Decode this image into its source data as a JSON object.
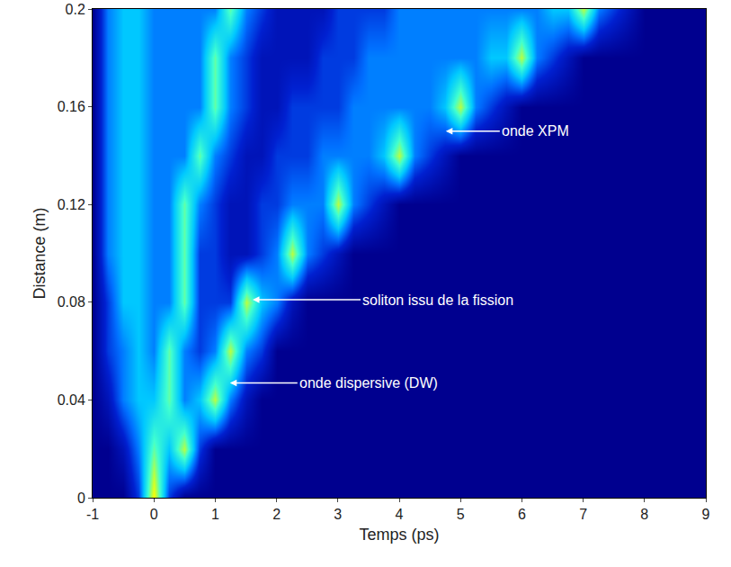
{
  "chart_data": {
    "type": "heatmap",
    "xlabel": "Temps (ps)",
    "ylabel": "Distance (m)",
    "xlim": [
      -1,
      9
    ],
    "ylim": [
      0,
      0.2
    ],
    "xticks": [
      -1,
      0,
      1,
      2,
      3,
      4,
      5,
      6,
      7,
      8,
      9
    ],
    "yticks": [
      0,
      0.04,
      0.08,
      0.12,
      0.16,
      0.2
    ],
    "x": [
      -1,
      -0.75,
      -0.5,
      -0.25,
      0,
      0.25,
      0.5,
      0.75,
      1,
      1.25,
      1.5,
      1.75,
      2,
      2.25,
      2.5,
      2.75,
      3,
      3.25,
      3.5,
      3.75,
      4,
      4.25,
      4.5,
      4.75,
      5,
      5.25,
      5.5,
      5.75,
      6,
      6.25,
      6.5,
      6.75,
      7,
      7.25,
      7.5,
      7.75,
      8,
      8.25,
      8.5,
      8.75,
      9
    ],
    "y": [
      0,
      0.02,
      0.04,
      0.06,
      0.08,
      0.1,
      0.12,
      0.14,
      0.16,
      0.18,
      0.2
    ],
    "z": [
      [
        0,
        0,
        0,
        2,
        8,
        2,
        0,
        0,
        0,
        0,
        0,
        0,
        0,
        0,
        0,
        0,
        0,
        0,
        0,
        0,
        0,
        0,
        0,
        0,
        0,
        0,
        0,
        0,
        0,
        0,
        0,
        0,
        0,
        0,
        0,
        0,
        0,
        0,
        0,
        0,
        0
      ],
      [
        0,
        0,
        1,
        3,
        6,
        4,
        7,
        2,
        0,
        0,
        0,
        0,
        0,
        0,
        0,
        0,
        0,
        0,
        0,
        0,
        0,
        0,
        0,
        0,
        0,
        0,
        0,
        0,
        0,
        0,
        0,
        0,
        0,
        0,
        0,
        0,
        0,
        0,
        0,
        0,
        0
      ],
      [
        0,
        1,
        3,
        4,
        4,
        6,
        3,
        4,
        7,
        3,
        1,
        0,
        0,
        0,
        0,
        0,
        0,
        0,
        0,
        0,
        0,
        0,
        0,
        0,
        0,
        0,
        0,
        0,
        0,
        0,
        0,
        0,
        0,
        0,
        0,
        0,
        0,
        0,
        0,
        0,
        0
      ],
      [
        0,
        2,
        3,
        4,
        3,
        6,
        3,
        2,
        3,
        7,
        3,
        2,
        0,
        0,
        0,
        0,
        0,
        0,
        0,
        0,
        0,
        0,
        0,
        0,
        0,
        0,
        0,
        0,
        0,
        0,
        0,
        0,
        0,
        0,
        0,
        0,
        0,
        0,
        0,
        0,
        0
      ],
      [
        0,
        2,
        4,
        4,
        3,
        3,
        6,
        2,
        2,
        2,
        7,
        4,
        3,
        1,
        0,
        0,
        0,
        0,
        0,
        0,
        0,
        0,
        0,
        0,
        0,
        0,
        0,
        0,
        0,
        0,
        0,
        0,
        0,
        0,
        0,
        0,
        0,
        0,
        0,
        0,
        0
      ],
      [
        0,
        3,
        4,
        4,
        3,
        3,
        6,
        2,
        2,
        1,
        1,
        2,
        3,
        7,
        3,
        2,
        1,
        0,
        0,
        0,
        0,
        0,
        0,
        0,
        0,
        0,
        0,
        0,
        0,
        0,
        0,
        0,
        0,
        0,
        0,
        0,
        0,
        0,
        0,
        0,
        0
      ],
      [
        0,
        3,
        4,
        4,
        3,
        3,
        6,
        3,
        2,
        1,
        1,
        2,
        2,
        3,
        3,
        3,
        7,
        3,
        2,
        1,
        0,
        0,
        0,
        0,
        0,
        0,
        0,
        0,
        0,
        0,
        0,
        0,
        0,
        0,
        0,
        0,
        0,
        0,
        0,
        0,
        0
      ],
      [
        0,
        3,
        4,
        4,
        3,
        3,
        3,
        6,
        3,
        2,
        1,
        1,
        2,
        2,
        2,
        3,
        3,
        3,
        3,
        4,
        7,
        3,
        2,
        1,
        0,
        0,
        0,
        0,
        0,
        0,
        0,
        0,
        0,
        0,
        0,
        0,
        0,
        0,
        0,
        0,
        0
      ],
      [
        0,
        3,
        4,
        4,
        3,
        3,
        3,
        3,
        6,
        3,
        2,
        1,
        1,
        2,
        2,
        2,
        2,
        3,
        3,
        3,
        3,
        3,
        3,
        4,
        7,
        3,
        2,
        1,
        0,
        0,
        0,
        0,
        0,
        0,
        0,
        0,
        0,
        0,
        0,
        0,
        0
      ],
      [
        0,
        3,
        4,
        4,
        3,
        3,
        3,
        3,
        6,
        3,
        2,
        1,
        1,
        1,
        1,
        2,
        2,
        2,
        3,
        3,
        3,
        3,
        3,
        3,
        3,
        3,
        4,
        4,
        7,
        3,
        2,
        1,
        0,
        0,
        0,
        0,
        0,
        0,
        0,
        0,
        0
      ],
      [
        0,
        3,
        4,
        4,
        3,
        3,
        3,
        3,
        3,
        6,
        3,
        2,
        1,
        1,
        1,
        1,
        2,
        2,
        2,
        2,
        3,
        3,
        3,
        3,
        3,
        3,
        3,
        3,
        3,
        3,
        4,
        4,
        7,
        3,
        2,
        1,
        0,
        0,
        0,
        0,
        0
      ]
    ],
    "annotations": [
      {
        "text": "onde XPM",
        "x": 4.76,
        "y": 0.15
      },
      {
        "text": "soliton issu de la fission",
        "x": 1.61,
        "y": 0.081
      },
      {
        "text": "onde dispersive (DW)",
        "x": 1.24,
        "y": 0.047
      }
    ]
  }
}
